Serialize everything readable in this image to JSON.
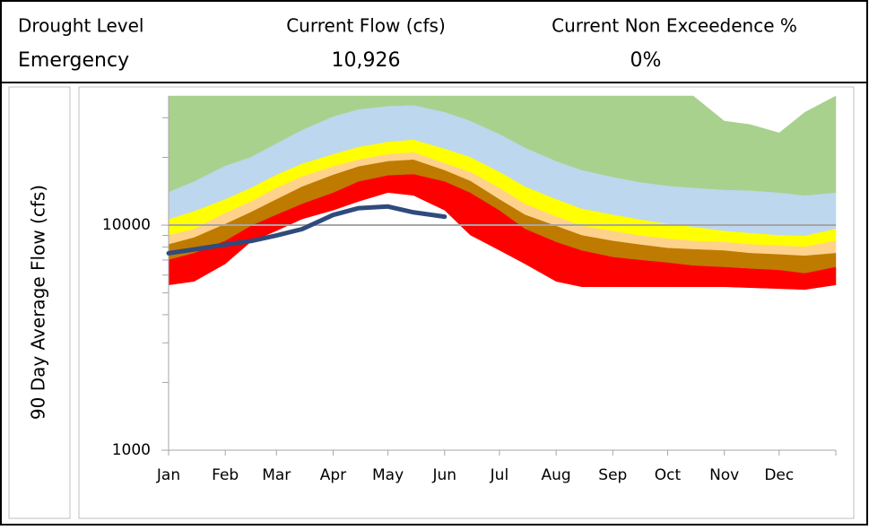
{
  "header": {
    "labels": [
      "Drought Level",
      "Current Flow (cfs)",
      "Current Non Exceedence %"
    ],
    "values": [
      "Emergency",
      "10,926",
      "0%"
    ]
  },
  "chart_data": {
    "type": "area",
    "ylabel": "90 Day Average Flow (cfs)",
    "log_scale": true,
    "grid": true,
    "xlim": [
      1,
      366
    ],
    "xticks": [
      {
        "value": 1,
        "label": "Jan"
      },
      {
        "value": 32,
        "label": "Feb"
      },
      {
        "value": 60,
        "label": "Mar"
      },
      {
        "value": 91,
        "label": "Apr"
      },
      {
        "value": 121,
        "label": "May"
      },
      {
        "value": 152,
        "label": "Jun"
      },
      {
        "value": 182,
        "label": "Jul"
      },
      {
        "value": 213,
        "label": "Aug"
      },
      {
        "value": 244,
        "label": "Sep"
      },
      {
        "value": 274,
        "label": "Oct"
      },
      {
        "value": 305,
        "label": "Nov"
      },
      {
        "value": 335,
        "label": "Dec"
      }
    ],
    "ylim": [
      1000,
      37500
    ],
    "yticks": [
      1000,
      10000
    ],
    "yminorticks": [
      2000,
      3000,
      4000,
      5000,
      6000,
      7000,
      8000,
      9000,
      20000,
      30000
    ],
    "x": [
      1,
      15,
      32,
      46,
      60,
      74,
      91,
      105,
      121,
      135,
      152,
      166,
      182,
      196,
      213,
      227,
      244,
      258,
      274,
      288,
      305,
      319,
      335,
      349,
      366
    ],
    "series": [
      {
        "color": "#a9d18e",
        "values": [
          37500,
          37500,
          37500,
          37500,
          37500,
          37500,
          37500,
          37500,
          37500,
          37500,
          37500,
          37500,
          37500,
          37500,
          37500,
          37500,
          37500,
          37500,
          37500,
          37500,
          29000,
          28000,
          25700,
          31700,
          37500
        ]
      },
      {
        "color": "#bdd7ee",
        "values": [
          14000,
          15600,
          18300,
          20000,
          23000,
          26400,
          30300,
          32600,
          33700,
          34000,
          31700,
          29000,
          25300,
          22000,
          19200,
          17500,
          16300,
          15500,
          14900,
          14600,
          14300,
          14200,
          13900,
          13500,
          13900
        ]
      },
      {
        "color": "#ffff00",
        "values": [
          10600,
          11500,
          13000,
          14600,
          16700,
          18700,
          20600,
          22200,
          23400,
          23900,
          21800,
          20000,
          17200,
          14800,
          13000,
          11800,
          11100,
          10600,
          10100,
          9800,
          9400,
          9200,
          9000,
          8950,
          9600
        ]
      },
      {
        "color": "#ffd28c",
        "values": [
          9000,
          9600,
          11300,
          12700,
          14600,
          16400,
          18200,
          19500,
          20600,
          21000,
          18800,
          17200,
          14600,
          12400,
          10900,
          9900,
          9400,
          9000,
          8700,
          8500,
          8400,
          8200,
          8100,
          8000,
          8500
        ]
      },
      {
        "color": "#bf7b00",
        "values": [
          8200,
          8800,
          10100,
          11400,
          13000,
          14800,
          16700,
          18200,
          19200,
          19500,
          17500,
          15700,
          13000,
          11100,
          9900,
          9000,
          8500,
          8200,
          7900,
          7800,
          7700,
          7500,
          7400,
          7300,
          7500
        ]
      },
      {
        "color": "#ff0000",
        "values": [
          7000,
          7500,
          8500,
          9900,
          11100,
          12400,
          13900,
          15600,
          16600,
          16800,
          15600,
          13900,
          11600,
          9600,
          8400,
          7700,
          7200,
          7000,
          6800,
          6600,
          6500,
          6400,
          6300,
          6100,
          6500
        ]
      },
      {
        "color": "#ffffff",
        "values": [
          5400,
          5600,
          6700,
          8400,
          9400,
          10600,
          11600,
          12700,
          13900,
          13500,
          11600,
          9000,
          7700,
          6700,
          5600,
          5300,
          5300,
          5300,
          5300,
          5300,
          5300,
          5250,
          5200,
          5150,
          5400
        ]
      },
      {
        "type": "line",
        "color": "#2f4b7c",
        "values": [
          7500,
          7800,
          8200,
          8500,
          9000,
          9600,
          11100,
          11900,
          12100,
          11400,
          10900,
          null,
          null,
          null,
          null,
          null,
          null,
          null,
          null,
          null,
          null,
          null,
          null,
          null,
          null
        ]
      }
    ]
  }
}
